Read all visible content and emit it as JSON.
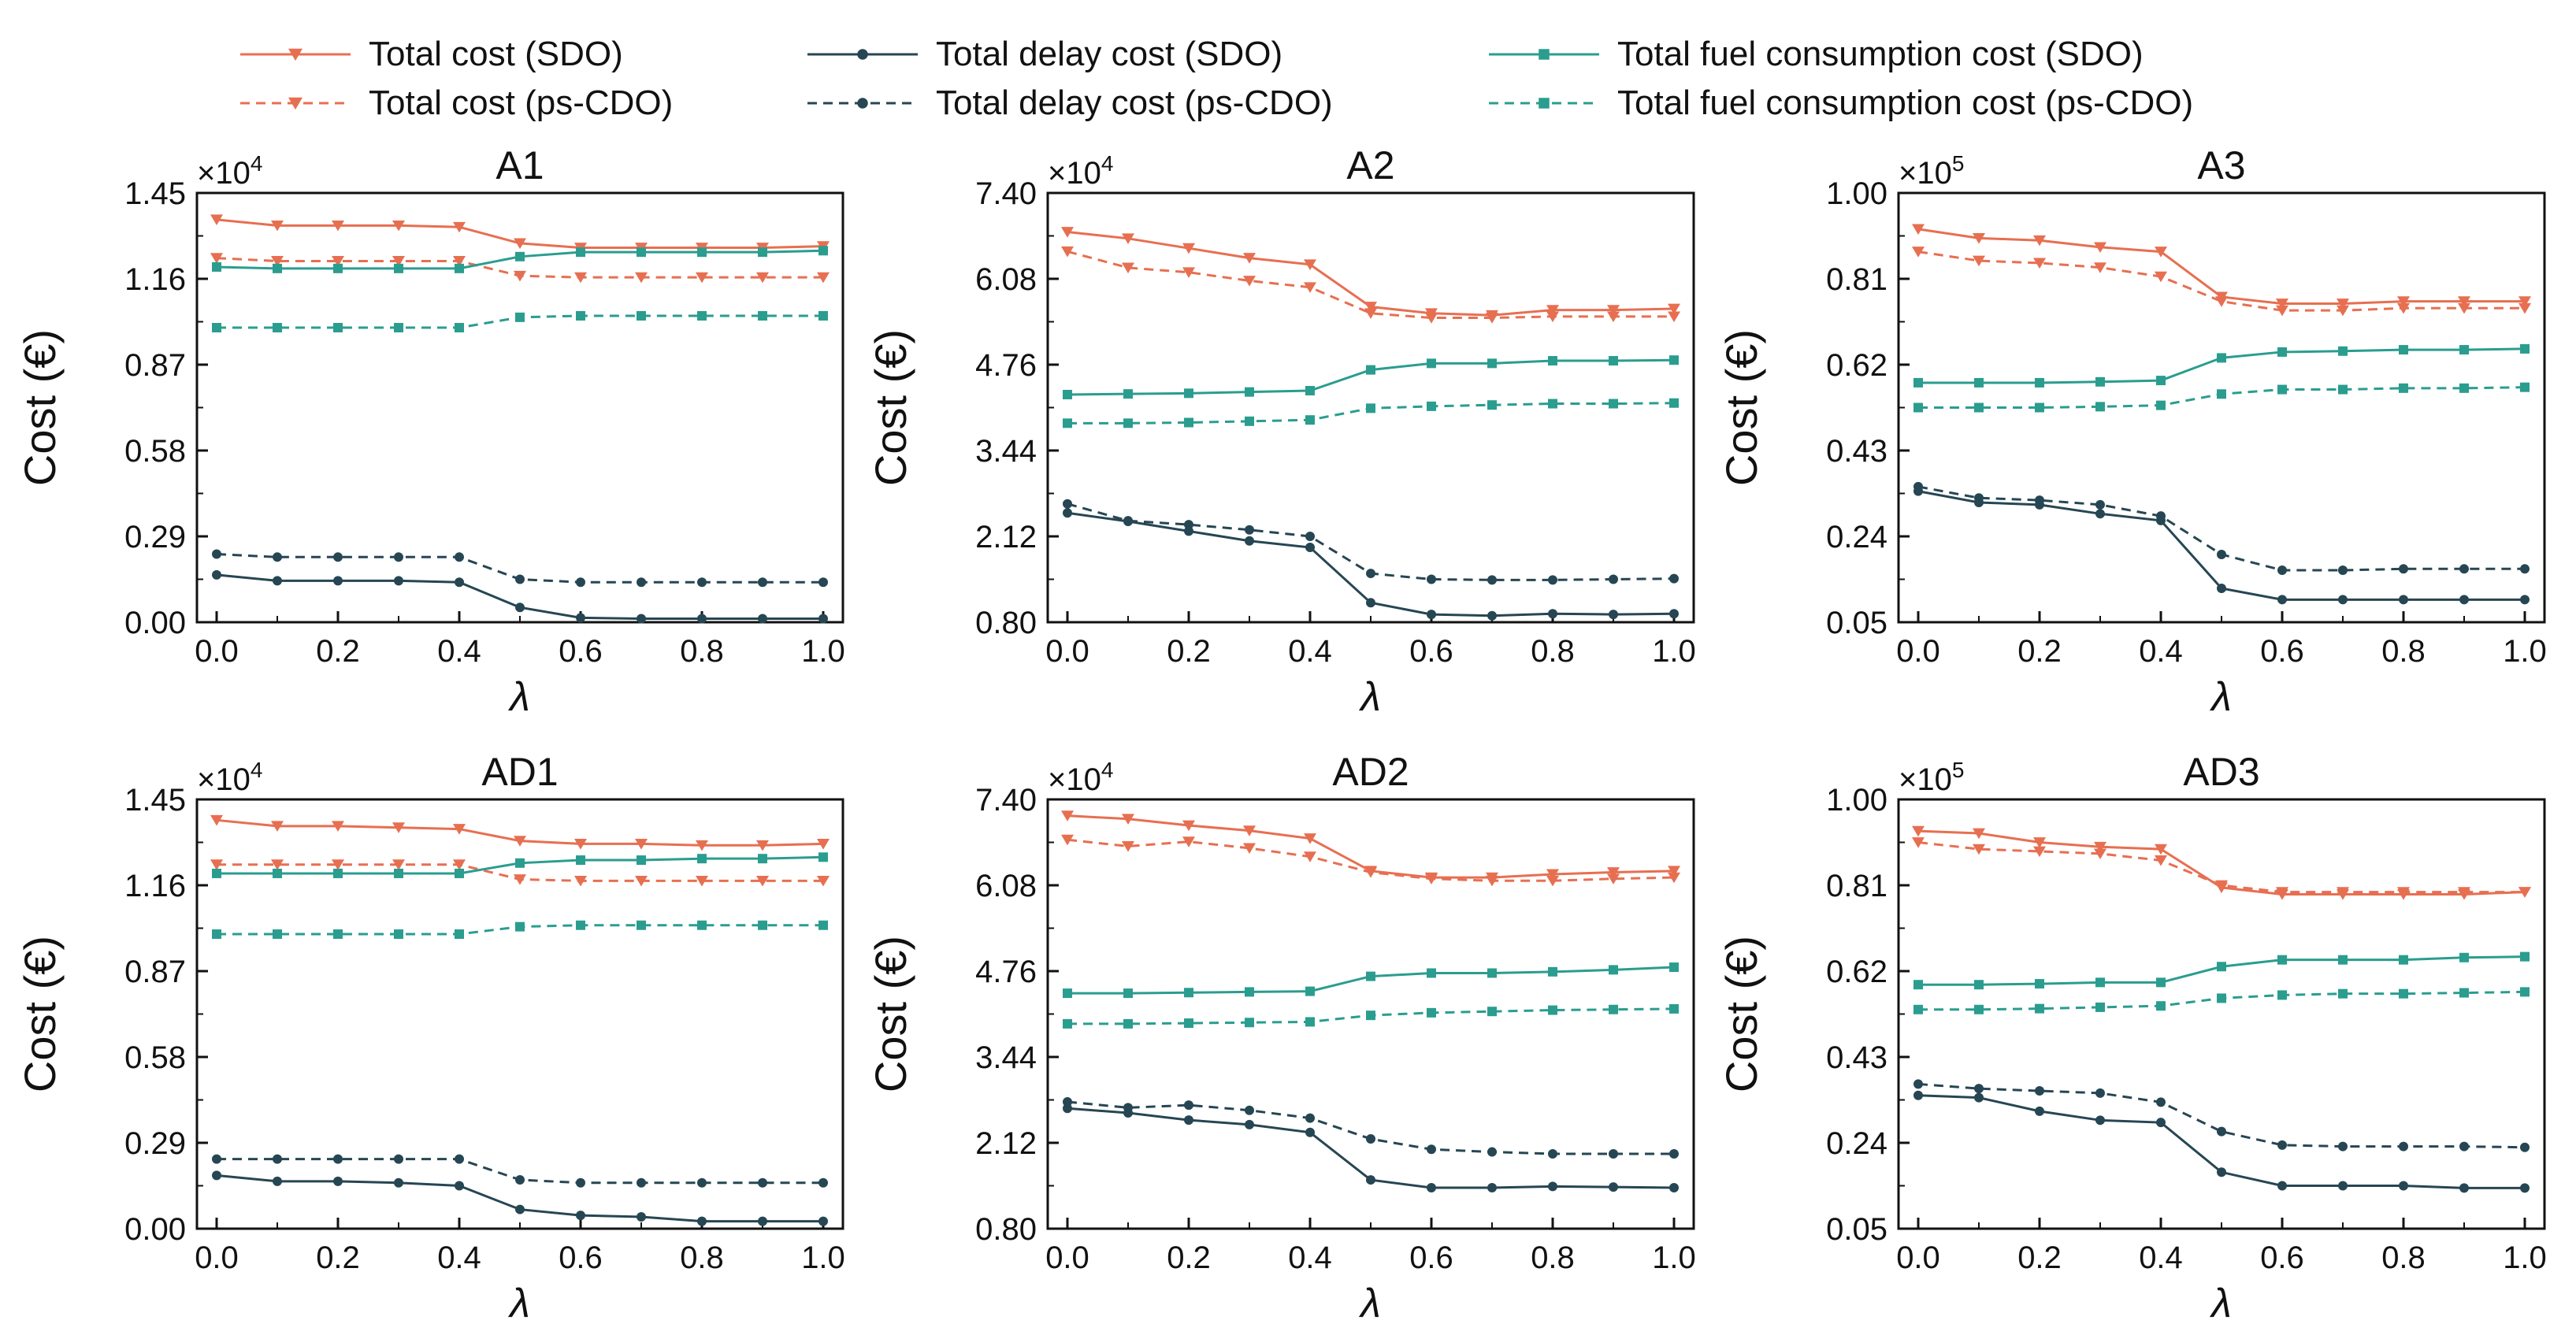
{
  "colors": {
    "total": "#e76f51",
    "delay": "#264653",
    "fuel": "#2a9d8f",
    "axis": "#111111"
  },
  "legend": [
    {
      "key": "total_sdo",
      "label": "Total cost (SDO)",
      "series": "total",
      "dashed": false,
      "marker": "triangle-down"
    },
    {
      "key": "total_ps",
      "label": "Total cost (ps-CDO)",
      "series": "total",
      "dashed": true,
      "marker": "triangle-down"
    },
    {
      "key": "delay_sdo",
      "label": "Total delay cost (SDO)",
      "series": "delay",
      "dashed": false,
      "marker": "circle"
    },
    {
      "key": "delay_ps",
      "label": "Total delay cost (ps-CDO)",
      "series": "delay",
      "dashed": true,
      "marker": "circle"
    },
    {
      "key": "fuel_sdo",
      "label": "Total fuel consumption cost (SDO)",
      "series": "fuel",
      "dashed": false,
      "marker": "square"
    },
    {
      "key": "fuel_ps",
      "label": "Total fuel consumption cost (ps-CDO)",
      "series": "fuel",
      "dashed": true,
      "marker": "square"
    }
  ],
  "chart_data": [
    {
      "type": "line",
      "title": "A1",
      "xlabel": "λ",
      "ylabel": "Cost (€)",
      "scale_label": "×10",
      "scale_exp": "4",
      "x": [
        0.0,
        0.1,
        0.2,
        0.3,
        0.4,
        0.5,
        0.6,
        0.7,
        0.8,
        0.9,
        1.0
      ],
      "xticks": [
        "0.0",
        "0.2",
        "0.4",
        "0.6",
        "0.8",
        "1.0"
      ],
      "yticks": [
        "0.00",
        "0.29",
        "0.58",
        "0.87",
        "1.16",
        "1.45"
      ],
      "ylim": [
        0.0,
        1.45
      ],
      "series": [
        {
          "key": "total_sdo",
          "name": "Total cost (SDO)",
          "values": [
            1.36,
            1.34,
            1.34,
            1.34,
            1.335,
            1.28,
            1.265,
            1.265,
            1.265,
            1.265,
            1.27
          ]
        },
        {
          "key": "total_ps",
          "name": "Total cost (ps-CDO)",
          "values": [
            1.23,
            1.22,
            1.22,
            1.22,
            1.22,
            1.17,
            1.165,
            1.165,
            1.165,
            1.165,
            1.165
          ]
        },
        {
          "key": "fuel_sdo",
          "name": "Total fuel consumption cost (SDO)",
          "values": [
            1.2,
            1.195,
            1.195,
            1.195,
            1.195,
            1.235,
            1.25,
            1.25,
            1.25,
            1.25,
            1.255
          ]
        },
        {
          "key": "fuel_ps",
          "name": "Total fuel consumption cost (ps-CDO)",
          "values": [
            0.995,
            0.995,
            0.995,
            0.995,
            0.995,
            1.03,
            1.035,
            1.035,
            1.035,
            1.035,
            1.035
          ]
        },
        {
          "key": "delay_sdo",
          "name": "Total delay cost (SDO)",
          "values": [
            0.16,
            0.14,
            0.14,
            0.14,
            0.135,
            0.05,
            0.015,
            0.012,
            0.012,
            0.012,
            0.012
          ]
        },
        {
          "key": "delay_ps",
          "name": "Total delay cost (ps-CDO)",
          "values": [
            0.23,
            0.22,
            0.22,
            0.22,
            0.22,
            0.145,
            0.135,
            0.135,
            0.135,
            0.135,
            0.135
          ]
        }
      ]
    },
    {
      "type": "line",
      "title": "A2",
      "xlabel": "λ",
      "ylabel": "Cost (€)",
      "scale_label": "×10",
      "scale_exp": "4",
      "x": [
        0.0,
        0.1,
        0.2,
        0.3,
        0.4,
        0.5,
        0.6,
        0.7,
        0.8,
        0.9,
        1.0
      ],
      "xticks": [
        "0.0",
        "0.2",
        "0.4",
        "0.6",
        "0.8",
        "1.0"
      ],
      "yticks": [
        "0.80",
        "2.12",
        "3.44",
        "4.76",
        "6.08",
        "7.40"
      ],
      "ylim": [
        0.8,
        7.4
      ],
      "series": [
        {
          "key": "total_sdo",
          "name": "Total cost (SDO)",
          "values": [
            6.8,
            6.7,
            6.55,
            6.4,
            6.3,
            5.65,
            5.55,
            5.52,
            5.6,
            5.6,
            5.62
          ]
        },
        {
          "key": "total_ps",
          "name": "Total cost (ps-CDO)",
          "values": [
            6.5,
            6.25,
            6.18,
            6.05,
            5.95,
            5.55,
            5.48,
            5.48,
            5.5,
            5.5,
            5.5
          ]
        },
        {
          "key": "fuel_sdo",
          "name": "Total fuel consumption cost (SDO)",
          "values": [
            4.3,
            4.31,
            4.32,
            4.34,
            4.36,
            4.68,
            4.78,
            4.78,
            4.82,
            4.82,
            4.83
          ]
        },
        {
          "key": "fuel_ps",
          "name": "Total fuel consumption cost (ps-CDO)",
          "values": [
            3.86,
            3.86,
            3.87,
            3.89,
            3.91,
            4.09,
            4.12,
            4.14,
            4.16,
            4.16,
            4.17
          ]
        },
        {
          "key": "delay_sdo",
          "name": "Total delay cost (SDO)",
          "values": [
            2.48,
            2.35,
            2.2,
            2.05,
            1.95,
            1.1,
            0.92,
            0.9,
            0.93,
            0.92,
            0.93
          ]
        },
        {
          "key": "delay_ps",
          "name": "Total delay cost (ps-CDO)",
          "values": [
            2.62,
            2.36,
            2.3,
            2.22,
            2.12,
            1.55,
            1.46,
            1.45,
            1.45,
            1.46,
            1.47
          ]
        }
      ]
    },
    {
      "type": "line",
      "title": "A3",
      "xlabel": "λ",
      "ylabel": "Cost (€)",
      "scale_label": "×10",
      "scale_exp": "5",
      "x": [
        0.0,
        0.1,
        0.2,
        0.3,
        0.4,
        0.5,
        0.6,
        0.7,
        0.8,
        0.9,
        1.0
      ],
      "xticks": [
        "0.0",
        "0.2",
        "0.4",
        "0.6",
        "0.8",
        "1.0"
      ],
      "yticks": [
        "0.05",
        "0.24",
        "0.43",
        "0.62",
        "0.81",
        "1.00"
      ],
      "ylim": [
        0.05,
        1.0
      ],
      "series": [
        {
          "key": "total_sdo",
          "name": "Total cost (SDO)",
          "values": [
            0.92,
            0.9,
            0.895,
            0.88,
            0.87,
            0.77,
            0.755,
            0.755,
            0.76,
            0.76,
            0.76
          ]
        },
        {
          "key": "total_ps",
          "name": "Total cost (ps-CDO)",
          "values": [
            0.87,
            0.85,
            0.845,
            0.835,
            0.815,
            0.76,
            0.74,
            0.74,
            0.745,
            0.745,
            0.745
          ]
        },
        {
          "key": "fuel_sdo",
          "name": "Total fuel consumption cost (SDO)",
          "values": [
            0.58,
            0.58,
            0.58,
            0.582,
            0.585,
            0.635,
            0.648,
            0.65,
            0.653,
            0.653,
            0.655
          ]
        },
        {
          "key": "fuel_ps",
          "name": "Total fuel consumption cost (ps-CDO)",
          "values": [
            0.525,
            0.525,
            0.525,
            0.527,
            0.53,
            0.555,
            0.565,
            0.565,
            0.568,
            0.568,
            0.57
          ]
        },
        {
          "key": "delay_sdo",
          "name": "Total delay cost (SDO)",
          "values": [
            0.34,
            0.315,
            0.31,
            0.29,
            0.275,
            0.125,
            0.1,
            0.1,
            0.1,
            0.1,
            0.1
          ]
        },
        {
          "key": "delay_ps",
          "name": "Total delay cost (ps-CDO)",
          "values": [
            0.35,
            0.325,
            0.32,
            0.31,
            0.285,
            0.2,
            0.165,
            0.165,
            0.168,
            0.168,
            0.168
          ]
        }
      ]
    },
    {
      "type": "line",
      "title": "AD1",
      "xlabel": "λ",
      "ylabel": "Cost (€)",
      "scale_label": "×10",
      "scale_exp": "4",
      "x": [
        0.0,
        0.1,
        0.2,
        0.3,
        0.4,
        0.5,
        0.6,
        0.7,
        0.8,
        0.9,
        1.0
      ],
      "xticks": [
        "0.0",
        "0.2",
        "0.4",
        "0.6",
        "0.8",
        "1.0"
      ],
      "yticks": [
        "0.00",
        "0.29",
        "0.58",
        "0.87",
        "1.16",
        "1.45"
      ],
      "ylim": [
        0.0,
        1.45
      ],
      "series": [
        {
          "key": "total_sdo",
          "name": "Total cost (SDO)",
          "values": [
            1.38,
            1.36,
            1.36,
            1.355,
            1.35,
            1.31,
            1.3,
            1.3,
            1.295,
            1.295,
            1.3
          ]
        },
        {
          "key": "total_ps",
          "name": "Total cost (ps-CDO)",
          "values": [
            1.23,
            1.23,
            1.23,
            1.23,
            1.23,
            1.18,
            1.175,
            1.175,
            1.175,
            1.175,
            1.175
          ]
        },
        {
          "key": "fuel_sdo",
          "name": "Total fuel consumption cost (SDO)",
          "values": [
            1.2,
            1.2,
            1.2,
            1.2,
            1.2,
            1.235,
            1.245,
            1.245,
            1.25,
            1.25,
            1.255
          ]
        },
        {
          "key": "fuel_ps",
          "name": "Total fuel consumption cost (ps-CDO)",
          "values": [
            0.995,
            0.995,
            0.995,
            0.995,
            0.995,
            1.02,
            1.025,
            1.025,
            1.025,
            1.025,
            1.025
          ]
        },
        {
          "key": "delay_sdo",
          "name": "Total delay cost (SDO)",
          "values": [
            0.18,
            0.16,
            0.16,
            0.155,
            0.145,
            0.065,
            0.045,
            0.04,
            0.025,
            0.025,
            0.025
          ]
        },
        {
          "key": "delay_ps",
          "name": "Total delay cost (ps-CDO)",
          "values": [
            0.235,
            0.235,
            0.235,
            0.235,
            0.235,
            0.165,
            0.155,
            0.155,
            0.155,
            0.155,
            0.155
          ]
        }
      ]
    },
    {
      "type": "line",
      "title": "AD2",
      "xlabel": "λ",
      "ylabel": "Cost (€)",
      "scale_label": "×10",
      "scale_exp": "4",
      "x": [
        0.0,
        0.1,
        0.2,
        0.3,
        0.4,
        0.5,
        0.6,
        0.7,
        0.8,
        0.9,
        1.0
      ],
      "xticks": [
        "0.0",
        "0.2",
        "0.4",
        "0.6",
        "0.8",
        "1.0"
      ],
      "yticks": [
        "0.80",
        "2.12",
        "3.44",
        "4.76",
        "6.08",
        "7.40"
      ],
      "ylim": [
        0.8,
        7.4
      ],
      "series": [
        {
          "key": "total_sdo",
          "name": "Total cost (SDO)",
          "values": [
            7.15,
            7.1,
            7.0,
            6.92,
            6.8,
            6.3,
            6.2,
            6.2,
            6.25,
            6.28,
            6.3
          ]
        },
        {
          "key": "total_ps",
          "name": "Total cost (ps-CDO)",
          "values": [
            6.78,
            6.68,
            6.75,
            6.65,
            6.52,
            6.28,
            6.18,
            6.15,
            6.15,
            6.18,
            6.2
          ]
        },
        {
          "key": "fuel_sdo",
          "name": "Total fuel consumption cost (SDO)",
          "values": [
            4.42,
            4.42,
            4.43,
            4.44,
            4.45,
            4.68,
            4.73,
            4.73,
            4.75,
            4.78,
            4.82
          ]
        },
        {
          "key": "fuel_ps",
          "name": "Total fuel consumption cost (ps-CDO)",
          "values": [
            3.95,
            3.95,
            3.96,
            3.97,
            3.98,
            4.08,
            4.12,
            4.14,
            4.16,
            4.17,
            4.18
          ]
        },
        {
          "key": "delay_sdo",
          "name": "Total delay cost (SDO)",
          "values": [
            2.65,
            2.58,
            2.47,
            2.4,
            2.28,
            1.55,
            1.43,
            1.43,
            1.45,
            1.44,
            1.43
          ]
        },
        {
          "key": "delay_ps",
          "name": "Total delay cost (ps-CDO)",
          "values": [
            2.75,
            2.66,
            2.7,
            2.62,
            2.5,
            2.18,
            2.02,
            1.98,
            1.95,
            1.95,
            1.95
          ]
        }
      ]
    },
    {
      "type": "line",
      "title": "AD3",
      "xlabel": "λ",
      "ylabel": "Cost (€)",
      "scale_label": "×10",
      "scale_exp": "5",
      "x": [
        0.0,
        0.1,
        0.2,
        0.3,
        0.4,
        0.5,
        0.6,
        0.7,
        0.8,
        0.9,
        1.0
      ],
      "xticks": [
        "0.0",
        "0.2",
        "0.4",
        "0.6",
        "0.8",
        "1.0"
      ],
      "yticks": [
        "0.05",
        "0.24",
        "0.43",
        "0.62",
        "0.81",
        "1.00"
      ],
      "ylim": [
        0.05,
        1.0
      ],
      "series": [
        {
          "key": "total_sdo",
          "name": "Total cost (SDO)",
          "values": [
            0.93,
            0.925,
            0.905,
            0.895,
            0.89,
            0.805,
            0.79,
            0.79,
            0.79,
            0.79,
            0.795
          ]
        },
        {
          "key": "total_ps",
          "name": "Total cost (ps-CDO)",
          "values": [
            0.905,
            0.89,
            0.885,
            0.88,
            0.865,
            0.81,
            0.795,
            0.795,
            0.795,
            0.795,
            0.795
          ]
        },
        {
          "key": "fuel_sdo",
          "name": "Total fuel consumption cost (SDO)",
          "values": [
            0.59,
            0.59,
            0.592,
            0.595,
            0.595,
            0.63,
            0.645,
            0.645,
            0.645,
            0.65,
            0.652
          ]
        },
        {
          "key": "fuel_ps",
          "name": "Total fuel consumption cost (ps-CDO)",
          "values": [
            0.535,
            0.535,
            0.537,
            0.54,
            0.543,
            0.56,
            0.567,
            0.57,
            0.57,
            0.572,
            0.574
          ]
        },
        {
          "key": "delay_sdo",
          "name": "Total delay cost (SDO)",
          "values": [
            0.345,
            0.34,
            0.31,
            0.29,
            0.285,
            0.175,
            0.145,
            0.145,
            0.145,
            0.14,
            0.14
          ]
        },
        {
          "key": "delay_ps",
          "name": "Total delay cost (ps-CDO)",
          "values": [
            0.37,
            0.36,
            0.355,
            0.35,
            0.33,
            0.265,
            0.235,
            0.232,
            0.232,
            0.232,
            0.23
          ]
        }
      ]
    }
  ]
}
